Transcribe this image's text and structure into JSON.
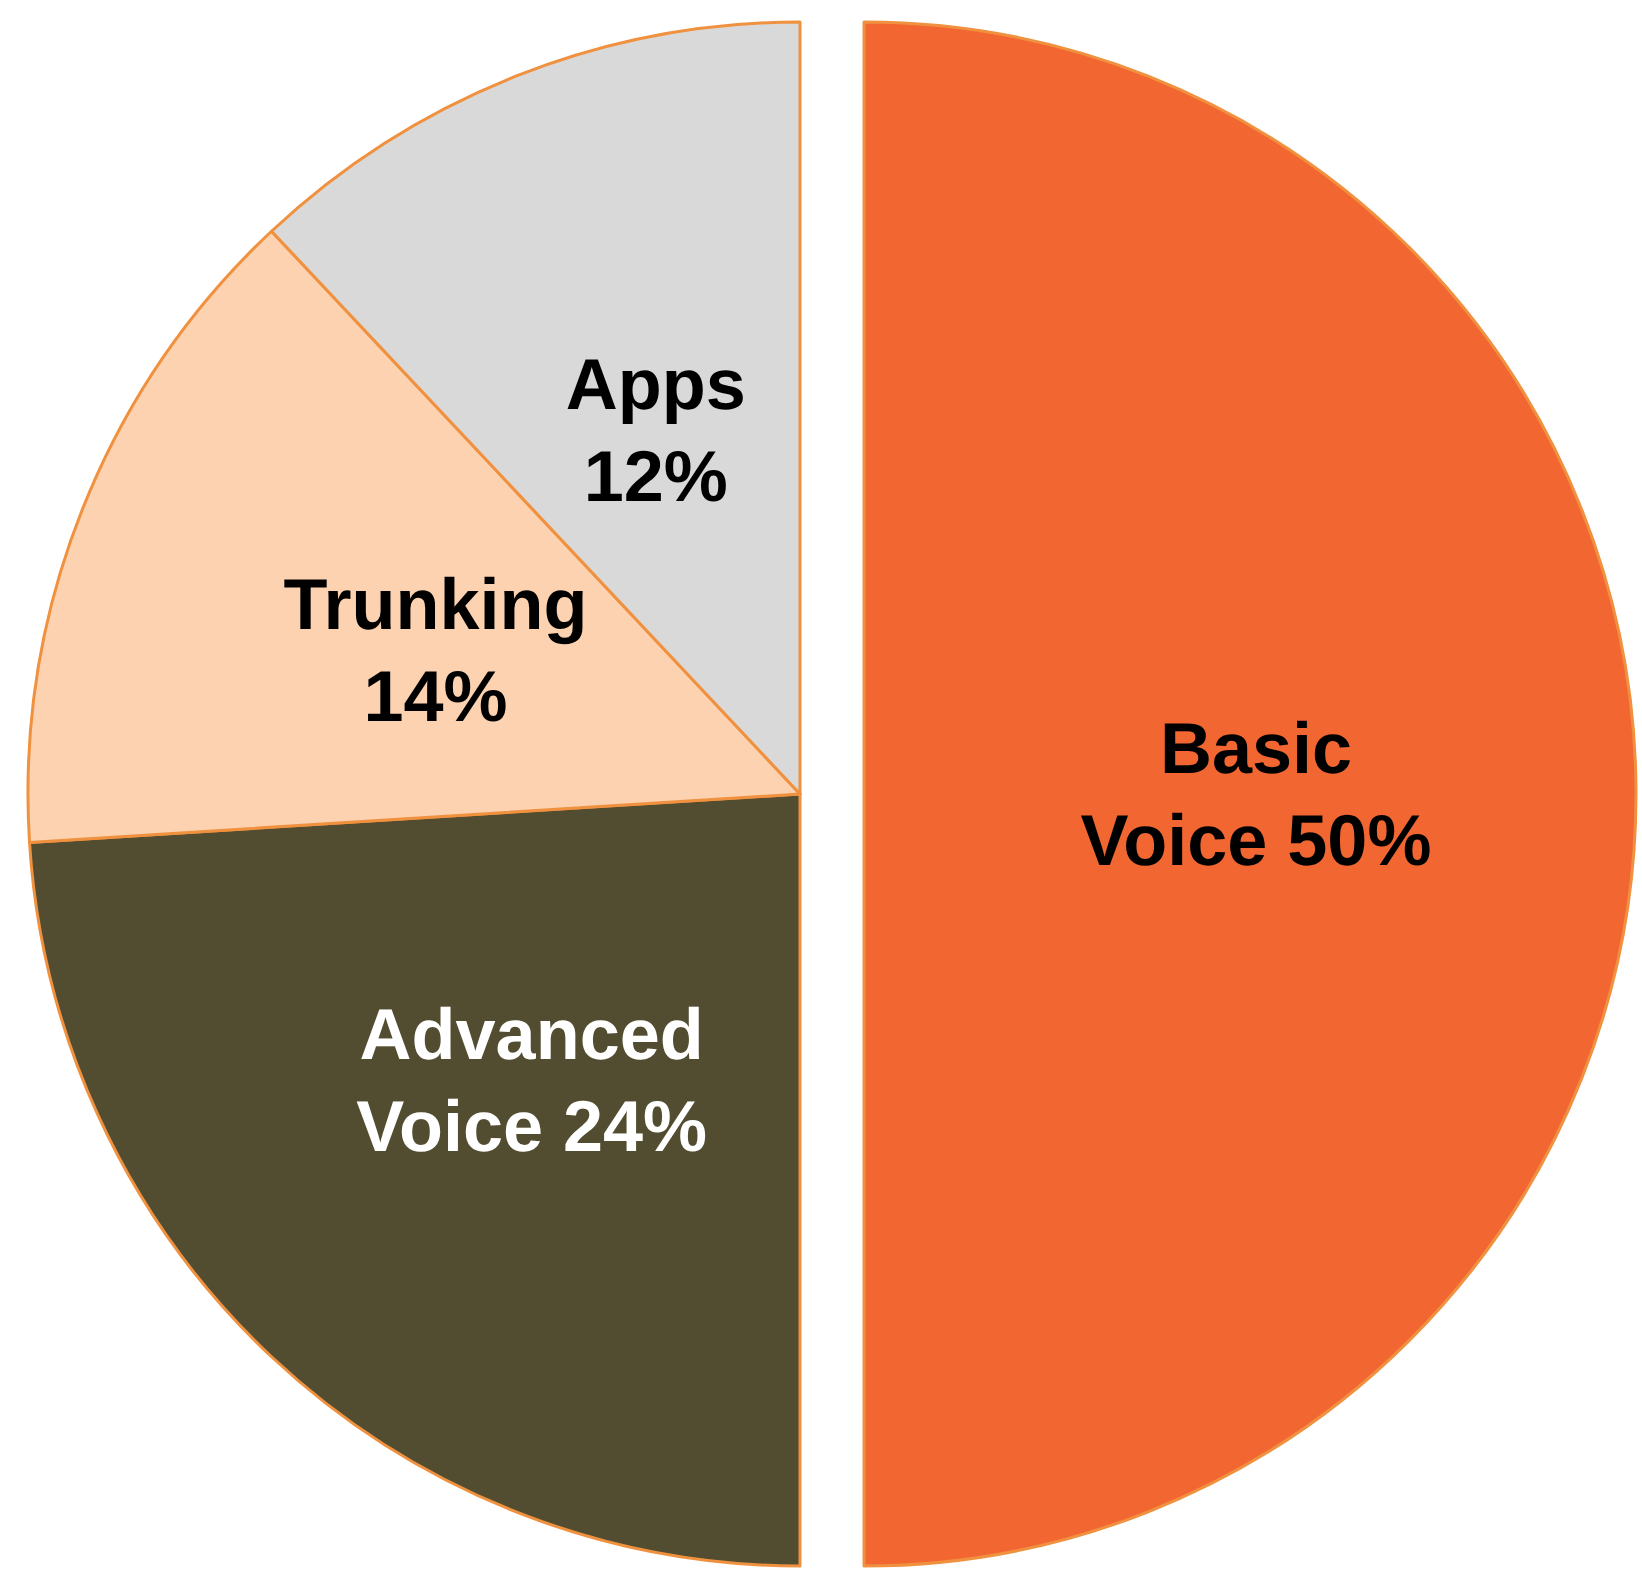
{
  "chart_data": {
    "type": "pie",
    "categories": [
      "Basic Voice",
      "Advanced Voice",
      "Trunking",
      "Apps"
    ],
    "values": [
      50,
      24,
      14,
      12
    ],
    "value_labels": [
      "50%",
      "24%",
      "14%",
      "12%"
    ],
    "colors": [
      "#f26632",
      "#524d30",
      "#fcd2b0",
      "#d9d9d9"
    ],
    "legend": false
  }
}
